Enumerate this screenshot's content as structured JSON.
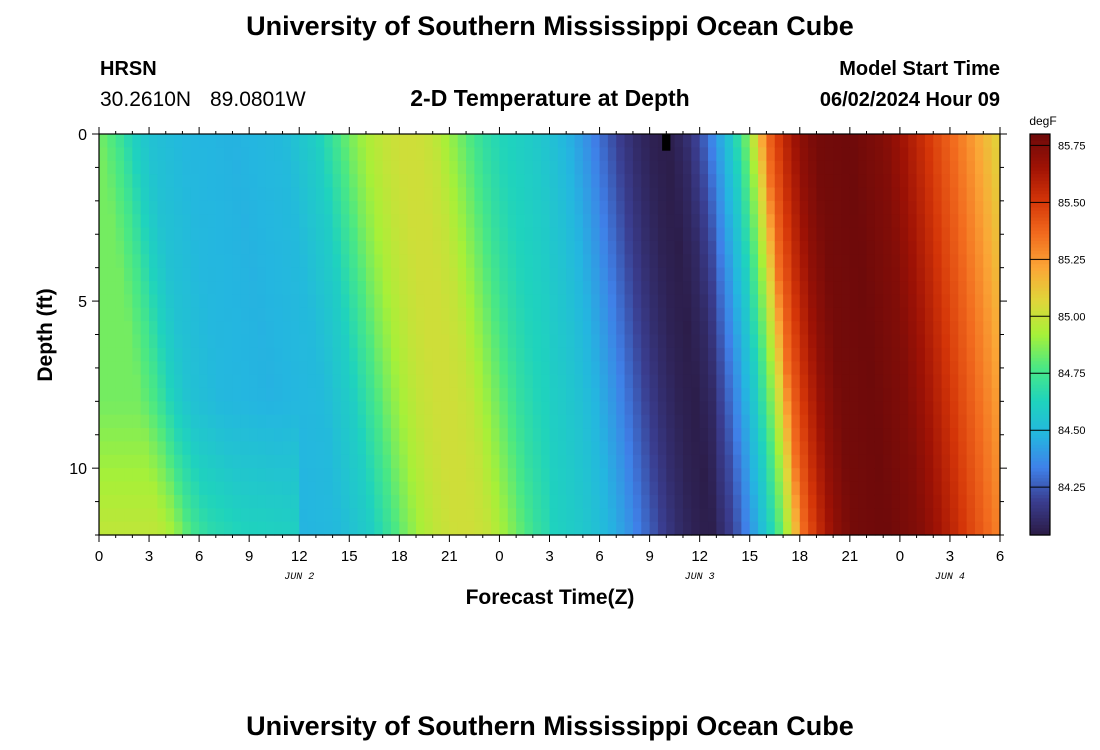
{
  "page": {
    "title": "University of Southern Mississippi Ocean Cube",
    "footer_title": "University of Southern Mississippi Ocean Cube"
  },
  "station": {
    "id": "HRSN",
    "lat": "30.2610N",
    "lon": "89.0801W"
  },
  "model": {
    "start_label": "Model Start Time",
    "start_value": "06/02/2024 Hour 09"
  },
  "chart_data": {
    "type": "heatmap",
    "title": "2-D Temperature at Depth",
    "xlabel": "Forecast Time(Z)",
    "ylabel": "Depth (ft)",
    "x_range_hours": [
      0,
      54
    ],
    "y_range_ft": [
      0,
      12
    ],
    "x_tick_labels": [
      "0",
      "3",
      "6",
      "9",
      "12",
      "15",
      "18",
      "21",
      "0",
      "3",
      "6",
      "9",
      "12",
      "15",
      "18",
      "21",
      "0",
      "3",
      "6"
    ],
    "y_tick_labels": [
      "0",
      "5",
      "10"
    ],
    "date_labels": [
      {
        "text": "JUN 2",
        "hour": 12
      },
      {
        "text": "JUN 3",
        "hour": 36
      },
      {
        "text": "JUN 4",
        "hour": 51
      }
    ],
    "colorbar": {
      "unit": "degF",
      "min": 84.04,
      "max": 85.8,
      "ticks": [
        "84.25",
        "84.50",
        "84.75",
        "85.00",
        "85.25",
        "85.50",
        "85.75"
      ],
      "colors": [
        "#2b1b45",
        "#3a3d8f",
        "#3f80e8",
        "#24b6e0",
        "#1fd3bd",
        "#4ae884",
        "#a7f038",
        "#e0d63a",
        "#fba636",
        "#f26b1e",
        "#d43508",
        "#9e1205",
        "#6e0a0a"
      ]
    },
    "surface_profile_degF": [
      [
        0,
        84.84
      ],
      [
        1,
        84.76
      ],
      [
        2,
        84.62
      ],
      [
        3,
        84.54
      ],
      [
        5,
        84.49
      ],
      [
        8,
        84.47
      ],
      [
        11,
        84.5
      ],
      [
        13,
        84.6
      ],
      [
        14,
        84.72
      ],
      [
        15,
        84.84
      ],
      [
        16,
        84.93
      ],
      [
        17,
        84.99
      ],
      [
        18,
        85.02
      ],
      [
        19,
        85.02
      ],
      [
        20,
        84.99
      ],
      [
        21,
        84.9
      ],
      [
        22,
        84.8
      ],
      [
        23,
        84.7
      ],
      [
        24,
        84.64
      ],
      [
        25,
        84.61
      ],
      [
        26,
        84.58
      ],
      [
        27,
        84.54
      ],
      [
        28,
        84.48
      ],
      [
        29,
        84.4
      ],
      [
        30,
        84.3
      ],
      [
        31,
        84.2
      ],
      [
        32,
        84.12
      ],
      [
        33,
        84.07
      ],
      [
        34,
        84.05
      ],
      [
        35,
        84.1
      ],
      [
        36,
        84.22
      ],
      [
        37,
        84.4
      ],
      [
        38,
        84.6
      ],
      [
        38.5,
        84.75
      ],
      [
        39,
        84.9
      ],
      [
        39.5,
        85.1
      ],
      [
        40,
        85.35
      ],
      [
        41,
        85.55
      ],
      [
        42,
        85.7
      ],
      [
        43,
        85.78
      ],
      [
        45,
        85.8
      ],
      [
        47,
        85.74
      ],
      [
        48,
        85.66
      ],
      [
        49,
        85.57
      ],
      [
        50,
        85.47
      ],
      [
        51,
        85.38
      ],
      [
        52,
        85.28
      ],
      [
        53,
        85.17
      ],
      [
        54,
        85.06
      ]
    ],
    "missing_cell": {
      "hour": 34,
      "depth_ft": 0.5
    }
  }
}
